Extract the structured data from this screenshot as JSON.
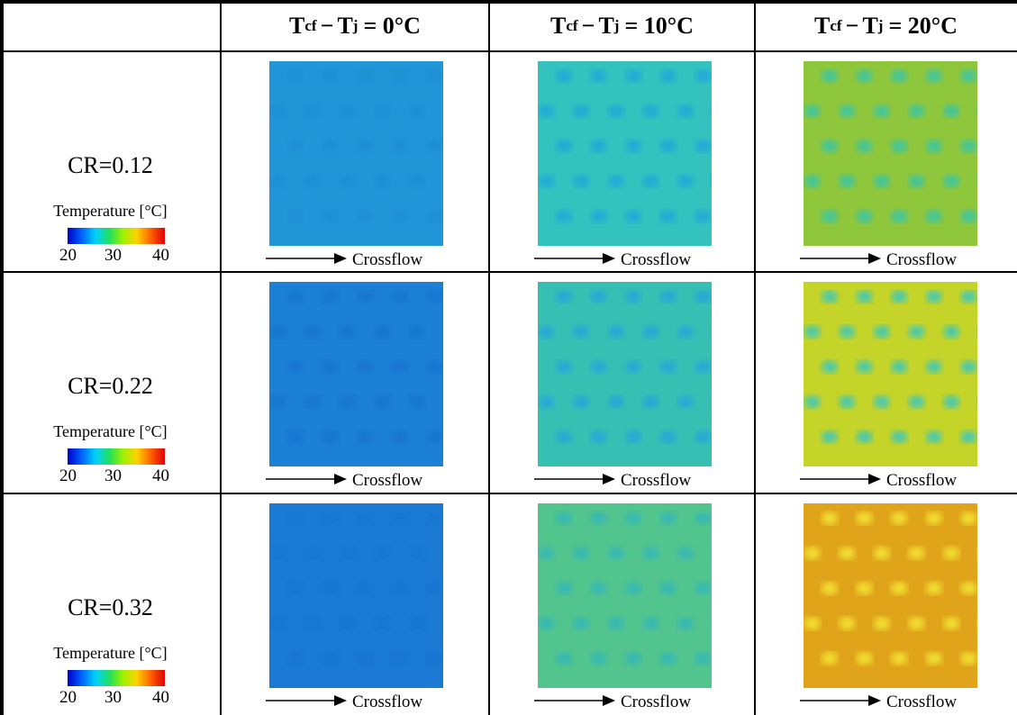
{
  "columns": [
    {
      "var1": "T",
      "sub1": "cf",
      "minus": "−",
      "var2": "T",
      "sub2": "j",
      "rest": "= 0°C"
    },
    {
      "var1": "T",
      "sub1": "cf",
      "minus": "−",
      "var2": "T",
      "sub2": "j",
      "rest": "= 10°C"
    },
    {
      "var1": "T",
      "sub1": "cf",
      "minus": "−",
      "var2": "T",
      "sub2": "j",
      "rest": "= 20°C"
    }
  ],
  "rows": [
    {
      "label": "CR=0.12"
    },
    {
      "label": "CR=0.22"
    },
    {
      "label": "CR=0.32"
    }
  ],
  "colorbar": {
    "title": "Temperature [°C]",
    "ticks": [
      20,
      30,
      40
    ]
  },
  "flow_label": "Crossflow"
}
